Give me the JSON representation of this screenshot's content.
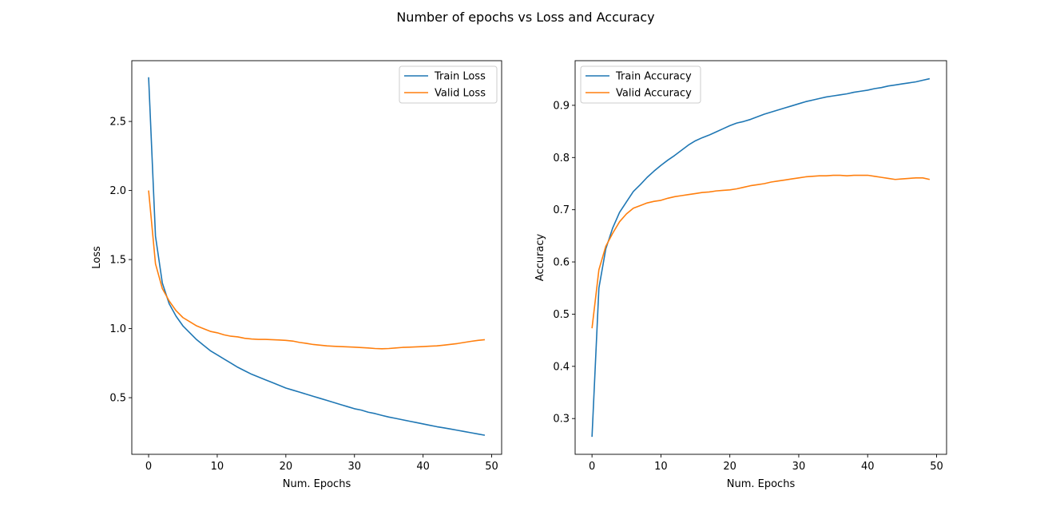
{
  "figure": {
    "suptitle": "Number of epochs vs Loss and Accuracy"
  },
  "chart_data": [
    {
      "type": "line",
      "title": "",
      "xlabel": "Num. Epochs",
      "ylabel": "Loss",
      "xlim": [
        -2.45,
        51.45
      ],
      "ylim": [
        0.09,
        2.94
      ],
      "xticks": [
        0,
        10,
        20,
        30,
        40,
        50
      ],
      "yticks": [
        0.5,
        1.0,
        1.5,
        2.0,
        2.5
      ],
      "ytick_labels": [
        "0.5",
        "1.0",
        "1.5",
        "2.0",
        "2.5"
      ],
      "legend": "top-right",
      "grid": false,
      "series": [
        {
          "name": "Train Loss",
          "color": "#1f77b4",
          "x": [
            0,
            1,
            2,
            3,
            4,
            5,
            6,
            7,
            8,
            9,
            10,
            11,
            12,
            13,
            14,
            15,
            16,
            17,
            18,
            19,
            20,
            21,
            22,
            23,
            24,
            25,
            26,
            27,
            28,
            29,
            30,
            31,
            32,
            33,
            34,
            35,
            36,
            37,
            38,
            39,
            40,
            41,
            42,
            43,
            44,
            45,
            46,
            47,
            48,
            49
          ],
          "y": [
            2.82,
            1.67,
            1.33,
            1.18,
            1.09,
            1.02,
            0.97,
            0.92,
            0.88,
            0.84,
            0.81,
            0.78,
            0.75,
            0.72,
            0.695,
            0.67,
            0.65,
            0.63,
            0.61,
            0.59,
            0.57,
            0.555,
            0.54,
            0.525,
            0.51,
            0.495,
            0.48,
            0.465,
            0.45,
            0.435,
            0.42,
            0.41,
            0.395,
            0.385,
            0.372,
            0.36,
            0.35,
            0.34,
            0.33,
            0.32,
            0.31,
            0.3,
            0.29,
            0.282,
            0.273,
            0.264,
            0.255,
            0.246,
            0.237,
            0.228
          ]
        },
        {
          "name": "Valid Loss",
          "color": "#ff7f0e",
          "x": [
            0,
            1,
            2,
            3,
            4,
            5,
            6,
            7,
            8,
            9,
            10,
            11,
            12,
            13,
            14,
            15,
            16,
            17,
            18,
            19,
            20,
            21,
            22,
            23,
            24,
            25,
            26,
            27,
            28,
            29,
            30,
            31,
            32,
            33,
            34,
            35,
            36,
            37,
            38,
            39,
            40,
            41,
            42,
            43,
            44,
            45,
            46,
            47,
            48,
            49
          ],
          "y": [
            2.0,
            1.47,
            1.29,
            1.2,
            1.13,
            1.08,
            1.05,
            1.02,
            1.0,
            0.98,
            0.97,
            0.955,
            0.945,
            0.94,
            0.93,
            0.925,
            0.922,
            0.922,
            0.92,
            0.918,
            0.915,
            0.91,
            0.9,
            0.893,
            0.885,
            0.88,
            0.875,
            0.872,
            0.87,
            0.868,
            0.866,
            0.863,
            0.86,
            0.856,
            0.854,
            0.856,
            0.86,
            0.864,
            0.866,
            0.868,
            0.87,
            0.873,
            0.875,
            0.88,
            0.886,
            0.892,
            0.9,
            0.908,
            0.915,
            0.92
          ]
        }
      ]
    },
    {
      "type": "line",
      "title": "",
      "xlabel": "Num. Epochs",
      "ylabel": "Accuracy",
      "xlim": [
        -2.45,
        51.45
      ],
      "ylim": [
        0.2315,
        0.9855
      ],
      "xticks": [
        0,
        10,
        20,
        30,
        40,
        50
      ],
      "yticks": [
        0.3,
        0.4,
        0.5,
        0.6,
        0.7,
        0.8,
        0.9
      ],
      "ytick_labels": [
        "0.3",
        "0.4",
        "0.5",
        "0.6",
        "0.7",
        "0.8",
        "0.9"
      ],
      "legend": "top-left",
      "grid": false,
      "series": [
        {
          "name": "Train Accuracy",
          "color": "#1f77b4",
          "x": [
            0,
            1,
            2,
            3,
            4,
            5,
            6,
            7,
            8,
            9,
            10,
            11,
            12,
            13,
            14,
            15,
            16,
            17,
            18,
            19,
            20,
            21,
            22,
            23,
            24,
            25,
            26,
            27,
            28,
            29,
            30,
            31,
            32,
            33,
            34,
            35,
            36,
            37,
            38,
            39,
            40,
            41,
            42,
            43,
            44,
            45,
            46,
            47,
            48,
            49
          ],
          "y": [
            0.265,
            0.55,
            0.625,
            0.665,
            0.695,
            0.715,
            0.735,
            0.748,
            0.762,
            0.774,
            0.785,
            0.795,
            0.804,
            0.814,
            0.824,
            0.832,
            0.838,
            0.843,
            0.849,
            0.855,
            0.861,
            0.866,
            0.869,
            0.873,
            0.878,
            0.883,
            0.887,
            0.891,
            0.895,
            0.899,
            0.903,
            0.907,
            0.91,
            0.913,
            0.916,
            0.918,
            0.92,
            0.922,
            0.925,
            0.927,
            0.929,
            0.932,
            0.934,
            0.937,
            0.939,
            0.941,
            0.943,
            0.945,
            0.948,
            0.951
          ]
        },
        {
          "name": "Valid Accuracy",
          "color": "#ff7f0e",
          "x": [
            0,
            1,
            2,
            3,
            4,
            5,
            6,
            7,
            8,
            9,
            10,
            11,
            12,
            13,
            14,
            15,
            16,
            17,
            18,
            19,
            20,
            21,
            22,
            23,
            24,
            25,
            26,
            27,
            28,
            29,
            30,
            31,
            32,
            33,
            34,
            35,
            36,
            37,
            38,
            39,
            40,
            41,
            42,
            43,
            44,
            45,
            46,
            47,
            48,
            49
          ],
          "y": [
            0.473,
            0.585,
            0.63,
            0.655,
            0.677,
            0.692,
            0.703,
            0.708,
            0.713,
            0.716,
            0.718,
            0.722,
            0.725,
            0.727,
            0.729,
            0.731,
            0.733,
            0.734,
            0.736,
            0.737,
            0.738,
            0.74,
            0.743,
            0.746,
            0.748,
            0.75,
            0.753,
            0.755,
            0.757,
            0.759,
            0.761,
            0.763,
            0.764,
            0.765,
            0.765,
            0.766,
            0.766,
            0.765,
            0.766,
            0.766,
            0.766,
            0.764,
            0.762,
            0.76,
            0.758,
            0.759,
            0.76,
            0.761,
            0.761,
            0.758
          ]
        }
      ]
    }
  ]
}
